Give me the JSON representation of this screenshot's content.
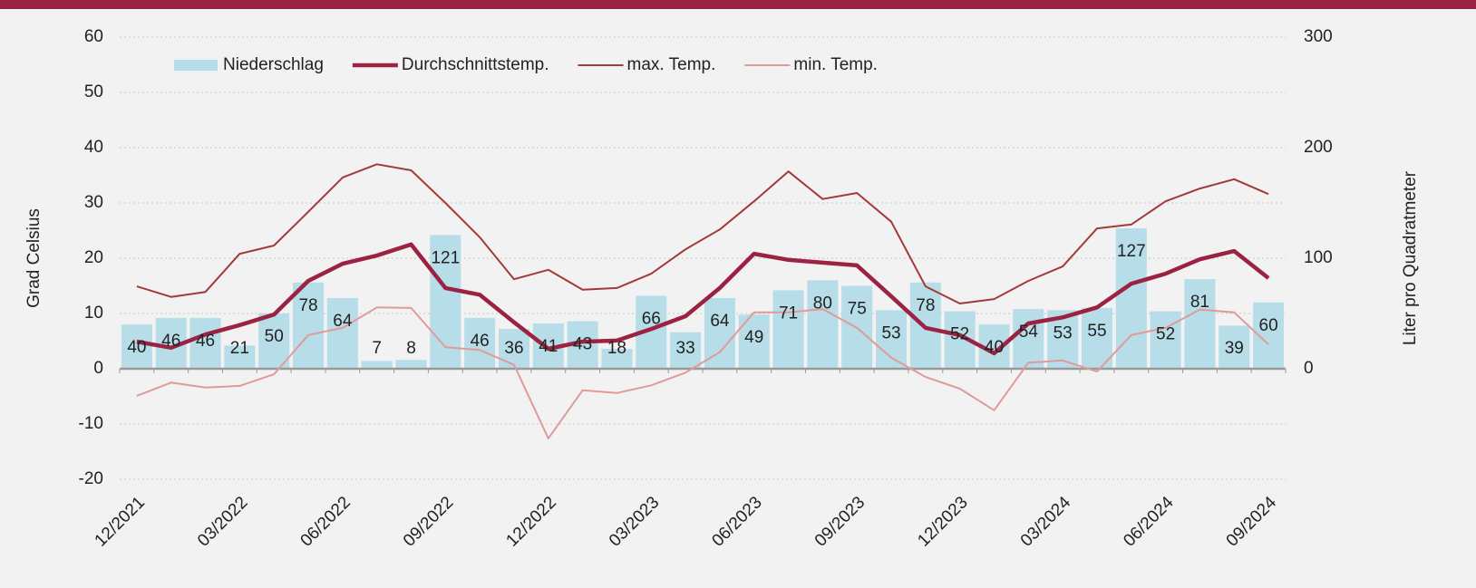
{
  "chart_data": {
    "type": "combo",
    "categories": [
      "12/2021",
      null,
      null,
      "03/2022",
      null,
      null,
      "06/2022",
      null,
      null,
      "09/2022",
      null,
      null,
      "12/2022",
      null,
      null,
      "03/2023",
      null,
      null,
      "06/2023",
      null,
      null,
      "09/2023",
      null,
      null,
      "12/2023",
      null,
      null,
      "03/2024",
      null,
      null,
      "06/2024",
      null,
      null,
      "09/2024"
    ],
    "ylabel": "Grad Celsius",
    "y2label": "Liter pro Quadratmeter",
    "ylim": [
      -20,
      60
    ],
    "yticks": [
      -20,
      -10,
      0,
      10,
      20,
      30,
      40,
      50,
      60
    ],
    "y2lim": [
      -100,
      300
    ],
    "y2ticks": [
      0,
      100,
      200,
      300
    ],
    "grid": true,
    "legend": "upper left",
    "series": [
      {
        "name": "Niederschlag",
        "type": "bar",
        "axis": "y2",
        "color": "#b7dde8",
        "data_labels": true,
        "values": [
          40,
          46,
          46,
          21,
          50,
          78,
          64,
          7,
          8,
          121,
          46,
          36,
          41,
          43,
          18,
          66,
          33,
          64,
          49,
          71,
          80,
          75,
          53,
          78,
          52,
          40,
          54,
          53,
          55,
          127,
          52,
          81,
          39,
          60
        ]
      },
      {
        "name": "Durchschnittstemp.",
        "type": "line",
        "color": "#9b2242",
        "values": [
          4.9,
          3.8,
          6.2,
          7.9,
          9.8,
          15.9,
          19.0,
          20.5,
          22.5,
          14.6,
          13.4,
          8.4,
          3.6,
          4.9,
          5.1,
          7.2,
          9.5,
          14.6,
          20.8,
          19.7,
          19.2,
          18.7,
          13.1,
          7.4,
          6.1,
          2.8,
          8.2,
          9.3,
          11.1,
          15.4,
          17.2,
          19.8,
          21.3,
          16.4
        ]
      },
      {
        "name": "max. Temp.",
        "type": "line",
        "color": "#a33a3a",
        "values": [
          14.9,
          13.0,
          13.9,
          20.8,
          22.3,
          28.4,
          34.6,
          37.0,
          35.9,
          30.0,
          23.8,
          16.2,
          17.9,
          14.3,
          14.6,
          17.2,
          21.6,
          25.2,
          30.3,
          35.7,
          30.7,
          31.8,
          26.6,
          14.9,
          11.8,
          12.6,
          15.9,
          18.5,
          25.4,
          26.1,
          30.3,
          32.6,
          34.3,
          31.6
        ]
      },
      {
        "name": "min. Temp.",
        "type": "line",
        "color": "#e09a9a",
        "values": [
          -4.9,
          -2.5,
          -3.4,
          -3.1,
          -1.0,
          6.1,
          7.4,
          11.1,
          11.0,
          3.9,
          3.4,
          0.7,
          -12.6,
          -3.9,
          -4.4,
          -3.0,
          -0.7,
          3.0,
          10.2,
          10.2,
          10.8,
          7.4,
          2.0,
          -1.5,
          -3.6,
          -7.5,
          1.1,
          1.5,
          -0.5,
          6.1,
          7.4,
          10.7,
          10.2,
          4.4
        ]
      }
    ]
  }
}
